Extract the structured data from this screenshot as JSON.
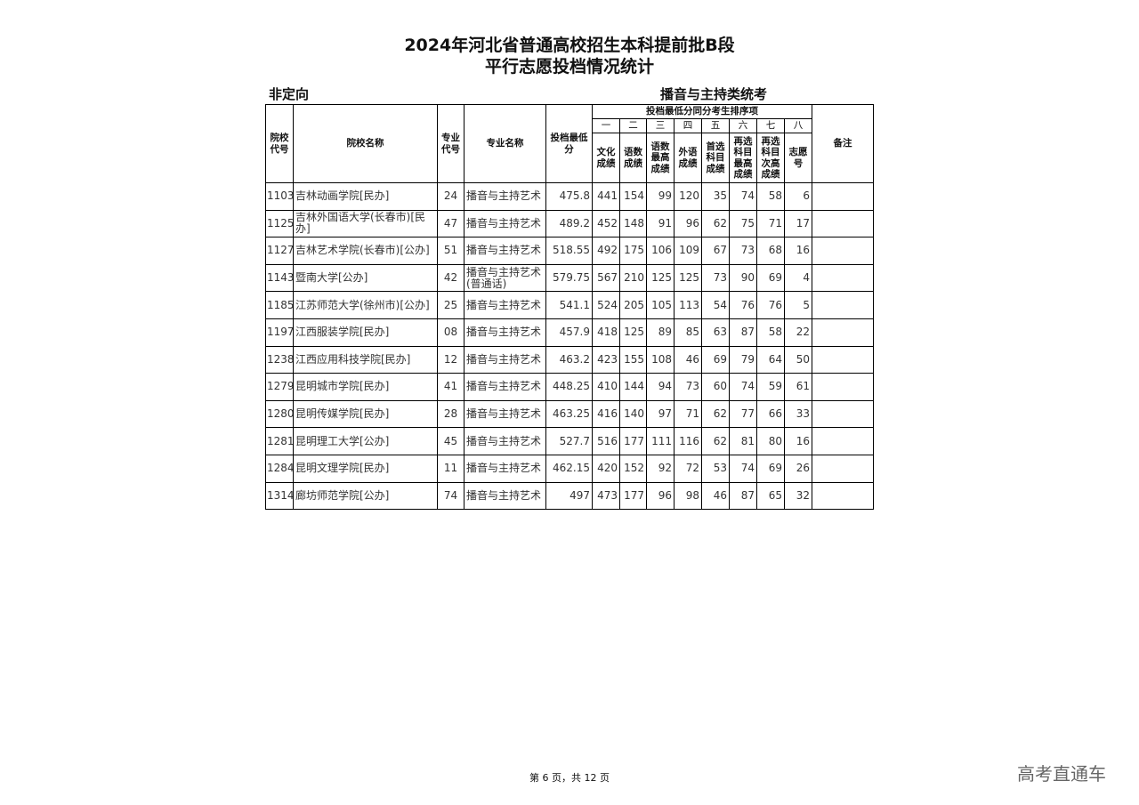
{
  "title_line1": "2024年河北省普通高校招生本科提前批B段",
  "title_line2": "平行志愿投档情况统计",
  "left_label": "非定向",
  "right_label": "播音与主持类统考",
  "headers": {
    "school_code": "院校代号",
    "school_name": "院校名称",
    "major_code": "专业代号",
    "major_name": "专业名称",
    "min_score": "投档最低分",
    "tiebreak_group": "投档最低分同分考生排序项",
    "numerals": [
      "一",
      "二",
      "三",
      "四",
      "五",
      "六",
      "七",
      "八"
    ],
    "tiebreak": [
      "文化成绩",
      "语数成绩",
      "语数最高成绩",
      "外语成绩",
      "首选科目成绩",
      "再选科目最高成绩",
      "再选科目次高成绩",
      "志愿号"
    ],
    "remark": "备注"
  },
  "rows": [
    [
      "1103",
      "吉林动画学院[民办]",
      "24",
      "播音与主持艺术",
      "475.8",
      "441",
      "154",
      "99",
      "120",
      "35",
      "74",
      "58",
      "6",
      ""
    ],
    [
      "1125",
      "吉林外国语大学(长春市)[民办]",
      "47",
      "播音与主持艺术",
      "489.2",
      "452",
      "148",
      "91",
      "96",
      "62",
      "75",
      "71",
      "17",
      ""
    ],
    [
      "1127",
      "吉林艺术学院(长春市)[公办]",
      "51",
      "播音与主持艺术",
      "518.55",
      "492",
      "175",
      "106",
      "109",
      "67",
      "73",
      "68",
      "16",
      ""
    ],
    [
      "1143",
      "暨南大学[公办]",
      "42",
      "播音与主持艺术(普通话)",
      "579.75",
      "567",
      "210",
      "125",
      "125",
      "73",
      "90",
      "69",
      "4",
      ""
    ],
    [
      "1185",
      "江苏师范大学(徐州市)[公办]",
      "25",
      "播音与主持艺术",
      "541.1",
      "524",
      "205",
      "105",
      "113",
      "54",
      "76",
      "76",
      "5",
      ""
    ],
    [
      "1197",
      "江西服装学院[民办]",
      "08",
      "播音与主持艺术",
      "457.9",
      "418",
      "125",
      "89",
      "85",
      "63",
      "87",
      "58",
      "22",
      ""
    ],
    [
      "1238",
      "江西应用科技学院[民办]",
      "12",
      "播音与主持艺术",
      "463.2",
      "423",
      "155",
      "108",
      "46",
      "69",
      "79",
      "64",
      "50",
      ""
    ],
    [
      "1279",
      "昆明城市学院[民办]",
      "41",
      "播音与主持艺术",
      "448.25",
      "410",
      "144",
      "94",
      "73",
      "60",
      "74",
      "59",
      "61",
      ""
    ],
    [
      "1280",
      "昆明传媒学院[民办]",
      "28",
      "播音与主持艺术",
      "463.25",
      "416",
      "140",
      "97",
      "71",
      "62",
      "77",
      "66",
      "33",
      ""
    ],
    [
      "1281",
      "昆明理工大学[公办]",
      "45",
      "播音与主持艺术",
      "527.7",
      "516",
      "177",
      "111",
      "116",
      "62",
      "81",
      "80",
      "16",
      ""
    ],
    [
      "1284",
      "昆明文理学院[民办]",
      "11",
      "播音与主持艺术",
      "462.15",
      "420",
      "152",
      "92",
      "72",
      "53",
      "74",
      "69",
      "26",
      ""
    ],
    [
      "1314",
      "廊坊师范学院[公办]",
      "74",
      "播音与主持艺术",
      "497",
      "473",
      "177",
      "96",
      "98",
      "46",
      "87",
      "65",
      "32",
      ""
    ]
  ],
  "footer": "第 6 页，共 12 页",
  "watermark": "高考直通车"
}
